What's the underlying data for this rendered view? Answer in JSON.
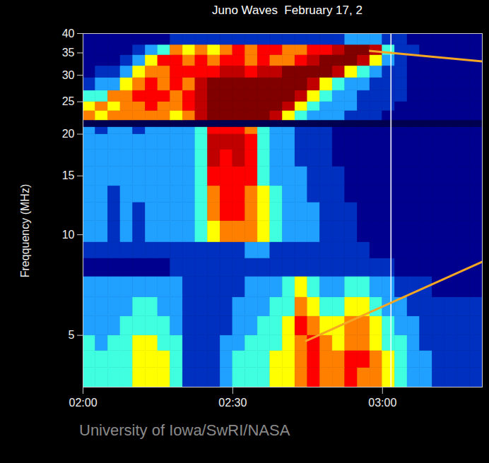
{
  "chart_data": {
    "type": "heatmap",
    "title": "Juno Waves  February 17, 2",
    "y_label": "Freqquency (MHz)",
    "caption": "University of Iowa/SwRI/NASA",
    "log": "y",
    "xlim": [
      0,
      80
    ],
    "xticks": [
      {
        "value": 0,
        "label": "02:00"
      },
      {
        "value": 30,
        "label": "02:30"
      },
      {
        "value": 60,
        "label": "03:00"
      }
    ],
    "ylim": [
      3.5,
      40
    ],
    "yticks": [
      5,
      10,
      15,
      20,
      25,
      30,
      35,
      40
    ],
    "zlim": [
      0,
      9
    ],
    "time_edges": [
      0,
      2.5,
      5,
      7.5,
      10,
      12.5,
      15,
      17.5,
      20,
      22.5,
      25,
      27.5,
      30,
      32.5,
      35,
      37.5,
      40,
      42.5,
      45,
      47.5,
      50,
      52.5,
      55,
      57.5,
      60,
      62.5,
      65,
      67.5,
      70,
      72.5,
      75,
      77.5,
      80
    ],
    "freq_edges": [
      3.5,
      4,
      4.5,
      5,
      5.7,
      6.5,
      7.5,
      8.5,
      9.5,
      11,
      12.5,
      14,
      16,
      18,
      20,
      21,
      22,
      23.5,
      25,
      27,
      29.5,
      32,
      34.5,
      37,
      40
    ],
    "cells": [
      [
        4,
        4,
        4,
        4,
        5,
        5,
        5,
        4,
        2,
        2,
        2,
        3,
        4,
        4,
        4,
        5,
        5,
        6,
        7,
        6,
        6,
        7,
        6,
        6,
        5,
        4,
        3,
        3,
        2,
        2,
        2,
        2
      ],
      [
        4,
        4,
        4,
        4,
        5,
        5,
        5,
        4,
        2,
        2,
        2,
        3,
        4,
        4,
        4,
        5,
        5,
        6,
        7,
        6,
        6,
        7,
        7,
        6,
        5,
        4,
        3,
        3,
        2,
        2,
        2,
        2
      ],
      [
        4,
        3,
        4,
        4,
        5,
        5,
        4,
        4,
        2,
        2,
        2,
        3,
        3,
        4,
        4,
        4,
        5,
        6,
        7,
        6,
        5,
        6,
        6,
        5,
        4,
        4,
        3,
        2,
        2,
        2,
        2,
        2
      ],
      [
        3,
        3,
        3,
        4,
        4,
        4,
        4,
        3,
        2,
        2,
        2,
        2,
        3,
        3,
        4,
        4,
        5,
        7,
        6,
        5,
        5,
        6,
        6,
        5,
        4,
        3,
        3,
        2,
        2,
        2,
        2,
        2
      ],
      [
        3,
        3,
        3,
        3,
        4,
        4,
        3,
        3,
        2,
        2,
        2,
        2,
        3,
        3,
        3,
        4,
        4,
        6,
        5,
        4,
        4,
        5,
        5,
        4,
        3,
        3,
        2,
        2,
        2,
        2,
        2,
        2
      ],
      [
        3,
        3,
        3,
        3,
        3,
        3,
        3,
        3,
        2,
        2,
        2,
        2,
        2,
        3,
        3,
        3,
        4,
        5,
        4,
        3,
        3,
        4,
        4,
        3,
        3,
        2,
        2,
        2,
        1,
        1,
        1,
        1
      ],
      [
        1,
        1,
        1,
        1,
        1,
        1,
        1,
        2,
        2,
        2,
        2,
        2,
        2,
        2,
        2,
        2,
        2,
        2,
        2,
        2,
        2,
        2,
        2,
        2,
        2,
        1,
        1,
        1,
        1,
        1,
        1,
        1
      ],
      [
        2,
        2,
        2,
        2,
        2,
        2,
        2,
        2,
        2,
        2,
        2,
        2,
        2,
        3,
        3,
        2,
        2,
        2,
        2,
        2,
        2,
        2,
        2,
        1,
        1,
        1,
        1,
        1,
        1,
        1,
        1,
        1
      ],
      [
        3,
        3,
        2,
        3,
        2,
        3,
        3,
        3,
        3,
        4,
        5,
        6,
        6,
        6,
        5,
        4,
        3,
        3,
        3,
        2,
        2,
        2,
        1,
        1,
        1,
        1,
        1,
        1,
        1,
        1,
        1,
        1
      ],
      [
        3,
        3,
        2,
        3,
        2,
        3,
        3,
        3,
        3,
        4,
        6,
        7,
        7,
        6,
        5,
        4,
        3,
        3,
        3,
        2,
        2,
        2,
        1,
        1,
        1,
        1,
        1,
        1,
        1,
        1,
        1,
        1
      ],
      [
        3,
        3,
        2,
        3,
        3,
        3,
        3,
        3,
        3,
        4,
        6,
        7,
        7,
        6,
        5,
        4,
        3,
        3,
        2,
        2,
        2,
        1,
        1,
        1,
        1,
        1,
        1,
        1,
        1,
        1,
        1,
        1
      ],
      [
        3,
        3,
        3,
        3,
        3,
        3,
        3,
        3,
        3,
        4,
        7,
        7,
        7,
        7,
        4,
        3,
        3,
        3,
        2,
        2,
        2,
        1,
        1,
        1,
        1,
        1,
        1,
        1,
        1,
        1,
        1,
        1
      ],
      [
        3,
        3,
        3,
        3,
        3,
        3,
        3,
        3,
        3,
        4,
        8,
        7,
        8,
        7,
        4,
        3,
        3,
        2,
        2,
        2,
        1,
        1,
        1,
        1,
        1,
        1,
        1,
        1,
        1,
        1,
        1,
        1
      ],
      [
        3,
        3,
        3,
        3,
        3,
        3,
        3,
        3,
        3,
        4,
        8,
        8,
        8,
        7,
        4,
        3,
        3,
        2,
        2,
        2,
        1,
        1,
        1,
        1,
        1,
        1,
        1,
        1,
        1,
        1,
        1,
        1
      ],
      [
        3,
        2,
        3,
        3,
        2,
        3,
        3,
        3,
        3,
        4,
        7,
        7,
        7,
        6,
        4,
        3,
        3,
        2,
        2,
        2,
        1,
        1,
        1,
        1,
        1,
        1,
        1,
        1,
        1,
        1,
        1,
        1
      ],
      [
        0,
        0,
        0,
        0,
        0,
        0,
        0,
        0,
        0,
        0,
        0,
        0,
        0,
        0,
        0,
        0,
        0,
        0,
        0,
        0,
        0,
        0,
        0,
        0,
        0,
        0,
        0,
        0,
        0,
        0,
        0,
        0
      ],
      [
        6,
        5,
        6,
        6,
        6,
        6,
        6,
        5,
        6,
        8,
        9,
        9,
        9,
        9,
        9,
        8,
        5,
        4,
        3,
        3,
        3,
        2,
        2,
        2,
        1,
        1,
        1,
        1,
        1,
        1,
        1,
        1
      ],
      [
        5,
        6,
        5,
        6,
        6,
        7,
        6,
        6,
        7,
        8,
        9,
        9,
        9,
        9,
        9,
        9,
        8,
        5,
        4,
        3,
        3,
        3,
        2,
        2,
        2,
        1,
        1,
        1,
        1,
        1,
        1,
        1
      ],
      [
        4,
        4,
        6,
        6,
        7,
        7,
        7,
        6,
        7,
        8,
        9,
        9,
        9,
        9,
        9,
        9,
        9,
        8,
        5,
        4,
        3,
        3,
        2,
        2,
        2,
        2,
        1,
        1,
        1,
        1,
        1,
        1
      ],
      [
        2,
        3,
        3,
        5,
        6,
        7,
        6,
        7,
        6,
        8,
        9,
        9,
        9,
        9,
        9,
        9,
        9,
        9,
        8,
        5,
        4,
        3,
        3,
        2,
        2,
        2,
        1,
        1,
        1,
        1,
        1,
        1
      ],
      [
        1,
        2,
        2,
        3,
        5,
        6,
        6,
        7,
        7,
        7,
        7,
        8,
        8,
        7,
        8,
        8,
        9,
        9,
        9,
        9,
        8,
        5,
        4,
        3,
        2,
        2,
        1,
        1,
        1,
        1,
        1,
        1
      ],
      [
        1,
        1,
        1,
        2,
        3,
        5,
        7,
        7,
        6,
        7,
        6,
        7,
        7,
        6,
        7,
        6,
        6,
        7,
        8,
        9,
        9,
        9,
        8,
        5,
        3,
        2,
        1,
        1,
        1,
        1,
        1,
        1
      ],
      [
        1,
        1,
        1,
        1,
        2,
        3,
        4,
        6,
        5,
        6,
        5,
        6,
        7,
        6,
        7,
        7,
        6,
        6,
        7,
        7,
        8,
        9,
        9,
        8,
        4,
        2,
        2,
        1,
        1,
        1,
        1,
        1
      ],
      [
        1,
        1,
        1,
        1,
        1,
        1,
        1,
        2,
        2,
        2,
        2,
        2,
        2,
        2,
        2,
        2,
        2,
        2,
        2,
        2,
        2,
        3,
        3,
        3,
        2,
        2,
        1,
        1,
        1,
        1,
        1,
        1
      ]
    ],
    "vline": 61.7,
    "pointers": [
      {
        "x1": 57.3,
        "y1": 35.5,
        "x2": 80,
        "y2": 33,
        "color": "#f5a623"
      },
      {
        "x1": 44.5,
        "y1": 4.8,
        "x2": 80,
        "y2": 8.3,
        "color": "#f5a623"
      }
    ]
  }
}
